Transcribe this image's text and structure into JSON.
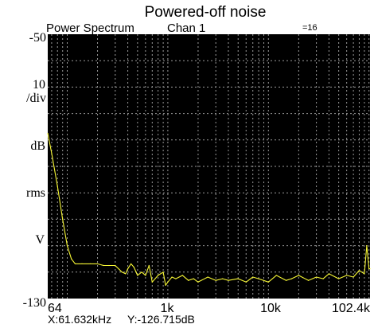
{
  "chart_data": {
    "type": "line",
    "title": "Powered-off noise",
    "header": {
      "measurement": "Power Spectrum",
      "channel": "Chan 1",
      "average": "=16"
    },
    "x_scale": "log",
    "xlim": [
      64,
      102400
    ],
    "ylim": [
      -130,
      -50
    ],
    "x_tick_labels": [
      "64",
      "1k",
      "10k",
      "102.4k"
    ],
    "x_tick_values": [
      64,
      1000,
      10000,
      102400
    ],
    "y_top_label": "-50",
    "y_bottom_label": "-130",
    "y_unit_labels": [
      "10",
      "/div",
      "dB",
      "rms",
      "V"
    ],
    "grid": true,
    "line_color": "#f7f735",
    "background_color": "#000000",
    "readout": {
      "x": "X:61.632kHz",
      "y": "Y:-126.715dB"
    },
    "series": [
      {
        "x": [
          64,
          70,
          80,
          90,
          100,
          110,
          120,
          140,
          170,
          200,
          230,
          260,
          300,
          350,
          380,
          400,
          430,
          460,
          500,
          550,
          600,
          650,
          700,
          800,
          900,
          950,
          1000,
          1100,
          1200,
          1400,
          1600,
          1800,
          2000,
          2500,
          3000,
          3500,
          4000,
          5000,
          6000,
          7000,
          8000,
          10000,
          12000,
          15000,
          17000,
          20000,
          25000,
          30000,
          35000,
          40000,
          50000,
          60000,
          70000,
          80000,
          90000,
          95000,
          100000,
          102400
        ],
        "y": [
          -80,
          -86,
          -96,
          -106,
          -114,
          -118,
          -119.5,
          -119.5,
          -119.5,
          -119.5,
          -120,
          -120,
          -120,
          -122,
          -122.5,
          -121,
          -119.5,
          -120.5,
          -123,
          -122,
          -123,
          -120,
          -125,
          -123,
          -122,
          -126,
          -125,
          -123.5,
          -124,
          -123,
          -124.5,
          -124,
          -125,
          -123.5,
          -124.5,
          -124,
          -124.5,
          -124,
          -125,
          -123.5,
          -124,
          -125,
          -123,
          -124.5,
          -124,
          -123,
          -124.5,
          -123.5,
          -124,
          -122.5,
          -124,
          -123,
          -123.5,
          -121.5,
          -122.5,
          -114,
          -121,
          -121
        ]
      }
    ]
  }
}
